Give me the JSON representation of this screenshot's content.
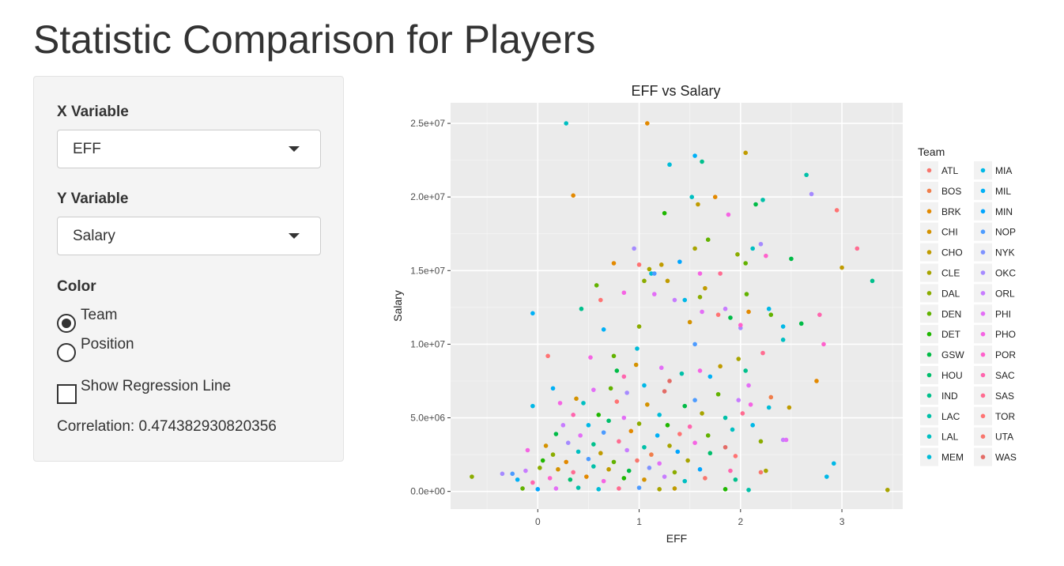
{
  "page": {
    "title": "Statistic Comparison for Players"
  },
  "controls": {
    "x_variable": {
      "label": "X Variable",
      "value": "EFF"
    },
    "y_variable": {
      "label": "Y Variable",
      "value": "Salary"
    },
    "color": {
      "label": "Color",
      "options": [
        "Team",
        "Position"
      ],
      "selected": "Team"
    },
    "regression": {
      "label": "Show Regression Line",
      "checked": false
    },
    "correlation_text": "Correlation: 0.474382930820356"
  },
  "chart_data": {
    "type": "scatter",
    "title": "EFF vs Salary",
    "xlabel": "EFF",
    "ylabel": "Salary",
    "xlim": [
      -0.86,
      3.6
    ],
    "ylim": [
      -1200000.0,
      26400000.0
    ],
    "x_ticks": [
      0,
      1,
      2,
      3
    ],
    "x_tick_labels": [
      "0",
      "1",
      "2",
      "3"
    ],
    "y_ticks": [
      0,
      5000000,
      10000000,
      15000000,
      20000000,
      25000000
    ],
    "y_tick_labels": [
      "0.0e+00",
      "5.0e+06",
      "1.0e+07",
      "1.5e+07",
      "2.0e+07",
      "2.5e+07"
    ],
    "grid": true,
    "legend": {
      "title": "Team",
      "position": "right",
      "teams": [
        "ATL",
        "BOS",
        "BRK",
        "CHI",
        "CHO",
        "CLE",
        "DAL",
        "DEN",
        "DET",
        "GSW",
        "HOU",
        "IND",
        "LAC",
        "LAL",
        "MEM",
        "MIA",
        "MIL",
        "MIN",
        "NOP",
        "NYK",
        "OKC",
        "ORL",
        "PHI",
        "PHO",
        "POR",
        "SAC",
        "SAS",
        "TOR",
        "UTA",
        "WAS"
      ],
      "colors": [
        "#F8766D",
        "#F07E4B",
        "#E38900",
        "#D49200",
        "#C09B00",
        "#A8A400",
        "#8BAC00",
        "#62B200",
        "#1FB700",
        "#00BB46",
        "#00BE6C",
        "#00C08C",
        "#00C0A8",
        "#00BFC2",
        "#00BCD8",
        "#00B8E7",
        "#00B0F6",
        "#00A5FF",
        "#4C9BFF",
        "#7E92FF",
        "#A58AFF",
        "#C77CFF",
        "#E36EF6",
        "#F564E3",
        "#FF61CC",
        "#FF65AE",
        "#FF6C91",
        "#FF7373",
        "#F8766D",
        "#E36C66"
      ]
    },
    "points": [
      {
        "x": 0.28,
        "y": 25000000,
        "team": "LAL"
      },
      {
        "x": 1.08,
        "y": 25000000,
        "team": "BRK"
      },
      {
        "x": 2.05,
        "y": 23000000,
        "team": "CHO"
      },
      {
        "x": 1.55,
        "y": 22800000,
        "team": "MIL"
      },
      {
        "x": 1.3,
        "y": 22200000,
        "team": "MEM"
      },
      {
        "x": 1.62,
        "y": 22400000,
        "team": "IND"
      },
      {
        "x": 2.65,
        "y": 21500000,
        "team": "LAC"
      },
      {
        "x": 2.7,
        "y": 20200000,
        "team": "OKC"
      },
      {
        "x": 0.35,
        "y": 20100000,
        "team": "BRK"
      },
      {
        "x": 1.52,
        "y": 20000000,
        "team": "LAL"
      },
      {
        "x": 1.75,
        "y": 20000000,
        "team": "BRK"
      },
      {
        "x": 2.22,
        "y": 19800000,
        "team": "LAC"
      },
      {
        "x": 2.15,
        "y": 19500000,
        "team": "GSW"
      },
      {
        "x": 1.58,
        "y": 19500000,
        "team": "CHO"
      },
      {
        "x": 1.25,
        "y": 18900000,
        "team": "DET"
      },
      {
        "x": 1.88,
        "y": 18800000,
        "team": "PHO"
      },
      {
        "x": 2.95,
        "y": 19100000,
        "team": "TOR"
      },
      {
        "x": 1.68,
        "y": 17100000,
        "team": "DEN"
      },
      {
        "x": 1.97,
        "y": 16100000,
        "team": "DAL"
      },
      {
        "x": 1.55,
        "y": 16500000,
        "team": "CLE"
      },
      {
        "x": 2.05,
        "y": 15500000,
        "team": "DEN"
      },
      {
        "x": 2.12,
        "y": 16500000,
        "team": "LAL"
      },
      {
        "x": 2.2,
        "y": 16800000,
        "team": "OKC"
      },
      {
        "x": 2.25,
        "y": 16000000,
        "team": "POR"
      },
      {
        "x": 2.5,
        "y": 15800000,
        "team": "GSW"
      },
      {
        "x": 3.0,
        "y": 15200000,
        "team": "CHO"
      },
      {
        "x": 3.15,
        "y": 16500000,
        "team": "SAS"
      },
      {
        "x": 3.3,
        "y": 14300000,
        "team": "IND"
      },
      {
        "x": 0.75,
        "y": 15500000,
        "team": "BRK"
      },
      {
        "x": 0.95,
        "y": 16500000,
        "team": "OKC"
      },
      {
        "x": 1.0,
        "y": 15400000,
        "team": "TOR"
      },
      {
        "x": 1.1,
        "y": 15100000,
        "team": "CLE"
      },
      {
        "x": 1.22,
        "y": 15400000,
        "team": "CHO"
      },
      {
        "x": 1.4,
        "y": 15600000,
        "team": "MIN"
      },
      {
        "x": 1.12,
        "y": 14800000,
        "team": "MEM"
      },
      {
        "x": 1.15,
        "y": 14800000,
        "team": "NOP"
      },
      {
        "x": 1.05,
        "y": 14300000,
        "team": "DAL"
      },
      {
        "x": 1.28,
        "y": 14300000,
        "team": "CHO"
      },
      {
        "x": 1.6,
        "y": 14800000,
        "team": "PHO"
      },
      {
        "x": 1.8,
        "y": 14800000,
        "team": "SAS"
      },
      {
        "x": 1.65,
        "y": 13800000,
        "team": "CHO"
      },
      {
        "x": 0.58,
        "y": 14000000,
        "team": "DEN"
      },
      {
        "x": 0.85,
        "y": 13500000,
        "team": "PHO"
      },
      {
        "x": 1.15,
        "y": 13400000,
        "team": "PHI"
      },
      {
        "x": 0.62,
        "y": 13000000,
        "team": "TOR"
      },
      {
        "x": 1.35,
        "y": 13000000,
        "team": "ORL"
      },
      {
        "x": 1.45,
        "y": 13000000,
        "team": "MIA"
      },
      {
        "x": 1.6,
        "y": 13200000,
        "team": "DAL"
      },
      {
        "x": 2.06,
        "y": 13400000,
        "team": "DEN"
      },
      {
        "x": 1.62,
        "y": 12200000,
        "team": "PHI"
      },
      {
        "x": 1.78,
        "y": 12000000,
        "team": "TOR"
      },
      {
        "x": 1.85,
        "y": 12400000,
        "team": "ORL"
      },
      {
        "x": 1.9,
        "y": 11800000,
        "team": "GSW"
      },
      {
        "x": 2.08,
        "y": 12200000,
        "team": "BRK"
      },
      {
        "x": 2.28,
        "y": 12400000,
        "team": "MIA"
      },
      {
        "x": 2.3,
        "y": 12000000,
        "team": "DEN"
      },
      {
        "x": 2.42,
        "y": 11200000,
        "team": "MIA"
      },
      {
        "x": 2.6,
        "y": 11400000,
        "team": "GSW"
      },
      {
        "x": 2.78,
        "y": 12000000,
        "team": "SAC"
      },
      {
        "x": 0.43,
        "y": 12400000,
        "team": "IND"
      },
      {
        "x": -0.05,
        "y": 12100000,
        "team": "MIL"
      },
      {
        "x": 1.0,
        "y": 11200000,
        "team": "DAL"
      },
      {
        "x": 1.5,
        "y": 11500000,
        "team": "CHI"
      },
      {
        "x": 0.65,
        "y": 11000000,
        "team": "MIL"
      },
      {
        "x": 2.0,
        "y": 11100000,
        "team": "OKC"
      },
      {
        "x": 2.0,
        "y": 11300000,
        "team": "POR"
      },
      {
        "x": 2.42,
        "y": 10300000,
        "team": "LAL"
      },
      {
        "x": 2.82,
        "y": 10000000,
        "team": "POR"
      },
      {
        "x": 0.1,
        "y": 9200000,
        "team": "TOR"
      },
      {
        "x": 0.52,
        "y": 9100000,
        "team": "PHO"
      },
      {
        "x": 0.75,
        "y": 9200000,
        "team": "DEN"
      },
      {
        "x": 0.98,
        "y": 9700000,
        "team": "MEM"
      },
      {
        "x": 1.55,
        "y": 10000000,
        "team": "NOP"
      },
      {
        "x": 1.98,
        "y": 9000000,
        "team": "CLE"
      },
      {
        "x": 2.22,
        "y": 9400000,
        "team": "SAS"
      },
      {
        "x": 0.78,
        "y": 8200000,
        "team": "GSW"
      },
      {
        "x": 0.97,
        "y": 8600000,
        "team": "CHI"
      },
      {
        "x": 1.22,
        "y": 8400000,
        "team": "PHI"
      },
      {
        "x": 1.42,
        "y": 8000000,
        "team": "LAC"
      },
      {
        "x": 1.6,
        "y": 8200000,
        "team": "PHO"
      },
      {
        "x": 1.8,
        "y": 8500000,
        "team": "CHO"
      },
      {
        "x": 2.05,
        "y": 8200000,
        "team": "IND"
      },
      {
        "x": 0.85,
        "y": 7800000,
        "team": "SAC"
      },
      {
        "x": 1.05,
        "y": 7200000,
        "team": "MIA"
      },
      {
        "x": 1.3,
        "y": 7500000,
        "team": "WAS"
      },
      {
        "x": 1.7,
        "y": 7800000,
        "team": "MIL"
      },
      {
        "x": 2.08,
        "y": 7200000,
        "team": "PHI"
      },
      {
        "x": 2.75,
        "y": 7500000,
        "team": "BRK"
      },
      {
        "x": 0.15,
        "y": 7000000,
        "team": "MIL"
      },
      {
        "x": 0.38,
        "y": 6300000,
        "team": "CHI"
      },
      {
        "x": 0.55,
        "y": 6900000,
        "team": "PHI"
      },
      {
        "x": 0.72,
        "y": 7000000,
        "team": "DEN"
      },
      {
        "x": 0.88,
        "y": 6700000,
        "team": "OKC"
      },
      {
        "x": 1.25,
        "y": 6800000,
        "team": "WAS"
      },
      {
        "x": 1.55,
        "y": 6200000,
        "team": "NOP"
      },
      {
        "x": 1.78,
        "y": 6600000,
        "team": "DEN"
      },
      {
        "x": 1.98,
        "y": 6200000,
        "team": "ORL"
      },
      {
        "x": 2.3,
        "y": 6400000,
        "team": "BOS"
      },
      {
        "x": 0.22,
        "y": 6000000,
        "team": "PHO"
      },
      {
        "x": 0.45,
        "y": 6000000,
        "team": "LAL"
      },
      {
        "x": -0.05,
        "y": 5800000,
        "team": "MIA"
      },
      {
        "x": 0.78,
        "y": 6100000,
        "team": "TOR"
      },
      {
        "x": 1.08,
        "y": 5900000,
        "team": "CHI"
      },
      {
        "x": 1.45,
        "y": 5800000,
        "team": "GSW"
      },
      {
        "x": 2.1,
        "y": 5900000,
        "team": "PHO"
      },
      {
        "x": 2.28,
        "y": 5700000,
        "team": "MEM"
      },
      {
        "x": 2.48,
        "y": 5700000,
        "team": "CHO"
      },
      {
        "x": 0.35,
        "y": 5200000,
        "team": "SAC"
      },
      {
        "x": 0.6,
        "y": 5200000,
        "team": "DET"
      },
      {
        "x": 0.85,
        "y": 5000000,
        "team": "PHI"
      },
      {
        "x": 1.2,
        "y": 5200000,
        "team": "MEM"
      },
      {
        "x": 1.62,
        "y": 5300000,
        "team": "CLE"
      },
      {
        "x": 1.85,
        "y": 5000000,
        "team": "LAC"
      },
      {
        "x": 2.02,
        "y": 5300000,
        "team": "SAS"
      },
      {
        "x": 0.25,
        "y": 4500000,
        "team": "ORL"
      },
      {
        "x": 0.5,
        "y": 4500000,
        "team": "MIA"
      },
      {
        "x": 0.7,
        "y": 4800000,
        "team": "HOU"
      },
      {
        "x": 1.0,
        "y": 4600000,
        "team": "DAL"
      },
      {
        "x": 1.28,
        "y": 4500000,
        "team": "DET"
      },
      {
        "x": 1.5,
        "y": 4400000,
        "team": "SAC"
      },
      {
        "x": 1.92,
        "y": 4200000,
        "team": "LAL"
      },
      {
        "x": 2.12,
        "y": 4500000,
        "team": "MIA"
      },
      {
        "x": 0.18,
        "y": 3900000,
        "team": "GSW"
      },
      {
        "x": 0.42,
        "y": 3800000,
        "team": "PHI"
      },
      {
        "x": 0.65,
        "y": 4000000,
        "team": "NOP"
      },
      {
        "x": 0.92,
        "y": 4100000,
        "team": "BRK"
      },
      {
        "x": 1.18,
        "y": 3800000,
        "team": "MIL"
      },
      {
        "x": 1.4,
        "y": 3900000,
        "team": "TOR"
      },
      {
        "x": 1.68,
        "y": 3800000,
        "team": "DEN"
      },
      {
        "x": 2.2,
        "y": 3400000,
        "team": "DAL"
      },
      {
        "x": 2.42,
        "y": 3500000,
        "team": "ORL"
      },
      {
        "x": 0.08,
        "y": 3100000,
        "team": "CHI"
      },
      {
        "x": 0.3,
        "y": 3300000,
        "team": "OKC"
      },
      {
        "x": 0.55,
        "y": 3200000,
        "team": "IND"
      },
      {
        "x": 0.8,
        "y": 3400000,
        "team": "SAS"
      },
      {
        "x": 1.05,
        "y": 3000000,
        "team": "LAC"
      },
      {
        "x": 1.3,
        "y": 3100000,
        "team": "CLE"
      },
      {
        "x": 1.55,
        "y": 3300000,
        "team": "PHO"
      },
      {
        "x": 1.85,
        "y": 3000000,
        "team": "WAS"
      },
      {
        "x": -0.1,
        "y": 2800000,
        "team": "PHO"
      },
      {
        "x": 0.15,
        "y": 2500000,
        "team": "DAL"
      },
      {
        "x": 0.4,
        "y": 2700000,
        "team": "LAL"
      },
      {
        "x": 0.62,
        "y": 2600000,
        "team": "CHO"
      },
      {
        "x": 0.88,
        "y": 2800000,
        "team": "ORL"
      },
      {
        "x": 1.12,
        "y": 2500000,
        "team": "BOS"
      },
      {
        "x": 1.38,
        "y": 2700000,
        "team": "MIN"
      },
      {
        "x": 1.7,
        "y": 2600000,
        "team": "HOU"
      },
      {
        "x": 1.95,
        "y": 2400000,
        "team": "TOR"
      },
      {
        "x": 0.05,
        "y": 2100000,
        "team": "DET"
      },
      {
        "x": 0.28,
        "y": 2000000,
        "team": "BRK"
      },
      {
        "x": 0.5,
        "y": 2200000,
        "team": "NOP"
      },
      {
        "x": 0.75,
        "y": 2000000,
        "team": "DEN"
      },
      {
        "x": 0.98,
        "y": 2100000,
        "team": "UTA"
      },
      {
        "x": 1.2,
        "y": 1900000,
        "team": "PHI"
      },
      {
        "x": 1.48,
        "y": 2100000,
        "team": "CLE"
      },
      {
        "x": 2.92,
        "y": 1900000,
        "team": "MIA"
      },
      {
        "x": -0.35,
        "y": 1200000,
        "team": "OKC"
      },
      {
        "x": -0.25,
        "y": 1200000,
        "team": "NOP"
      },
      {
        "x": -0.12,
        "y": 1400000,
        "team": "ORL"
      },
      {
        "x": 0.02,
        "y": 1600000,
        "team": "DAL"
      },
      {
        "x": 0.2,
        "y": 1500000,
        "team": "CHI"
      },
      {
        "x": 0.35,
        "y": 1300000,
        "team": "SAS"
      },
      {
        "x": 0.55,
        "y": 1700000,
        "team": "LAC"
      },
      {
        "x": 0.7,
        "y": 1500000,
        "team": "CHO"
      },
      {
        "x": 0.9,
        "y": 1400000,
        "team": "GSW"
      },
      {
        "x": 1.1,
        "y": 1600000,
        "team": "NYK"
      },
      {
        "x": 1.35,
        "y": 1300000,
        "team": "DAL"
      },
      {
        "x": 1.6,
        "y": 1500000,
        "team": "MIN"
      },
      {
        "x": 1.9,
        "y": 1400000,
        "team": "SAC"
      },
      {
        "x": 2.2,
        "y": 1300000,
        "team": "UTA"
      },
      {
        "x": 2.25,
        "y": 1400000,
        "team": "CLE"
      },
      {
        "x": -0.2,
        "y": 800000,
        "team": "MIL"
      },
      {
        "x": -0.05,
        "y": 600000,
        "team": "SAC"
      },
      {
        "x": 0.12,
        "y": 900000,
        "team": "POR"
      },
      {
        "x": 0.32,
        "y": 800000,
        "team": "HOU"
      },
      {
        "x": 0.48,
        "y": 1000000,
        "team": "BRK"
      },
      {
        "x": 0.65,
        "y": 700000,
        "team": "PHO"
      },
      {
        "x": 0.85,
        "y": 900000,
        "team": "DET"
      },
      {
        "x": 1.05,
        "y": 800000,
        "team": "CHI"
      },
      {
        "x": 1.25,
        "y": 1000000,
        "team": "ORL"
      },
      {
        "x": 1.45,
        "y": 700000,
        "team": "LAL"
      },
      {
        "x": 1.65,
        "y": 900000,
        "team": "ATL"
      },
      {
        "x": 1.95,
        "y": 800000,
        "team": "IND"
      },
      {
        "x": 2.85,
        "y": 1000000,
        "team": "MIA"
      },
      {
        "x": -0.15,
        "y": 200000,
        "team": "DEN"
      },
      {
        "x": 0.0,
        "y": 150000,
        "team": "MIN"
      },
      {
        "x": 0.18,
        "y": 200000,
        "team": "PHI"
      },
      {
        "x": 0.4,
        "y": 250000,
        "team": "LAC"
      },
      {
        "x": 0.6,
        "y": 150000,
        "team": "MEM"
      },
      {
        "x": 0.8,
        "y": 200000,
        "team": "SAS"
      },
      {
        "x": 1.0,
        "y": 250000,
        "team": "NOP"
      },
      {
        "x": 1.2,
        "y": 150000,
        "team": "CLE"
      },
      {
        "x": 1.35,
        "y": 200000,
        "team": "CHO"
      },
      {
        "x": 1.85,
        "y": 150000,
        "team": "DET"
      },
      {
        "x": 2.08,
        "y": 100000,
        "team": "LAC"
      },
      {
        "x": 3.45,
        "y": 100000,
        "team": "CLE"
      },
      {
        "x": -0.65,
        "y": 1000000,
        "team": "DAL"
      },
      {
        "x": 2.45,
        "y": 3500000,
        "team": "PHI"
      }
    ]
  }
}
